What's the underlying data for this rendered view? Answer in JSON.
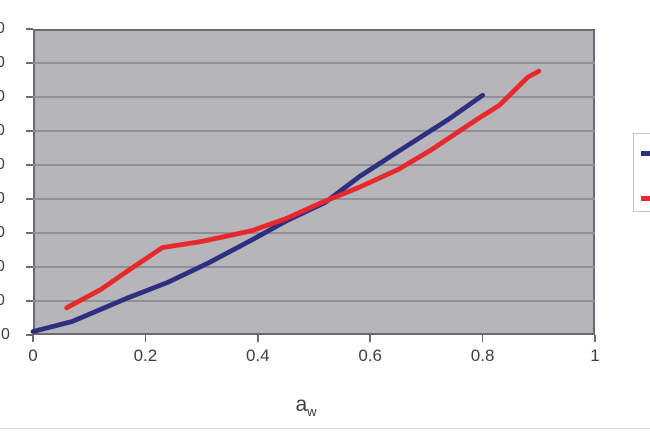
{
  "colors": {
    "series_blue": "#2f2f82",
    "series_red": "#e8282b",
    "plot_background": "#b5b5ba",
    "gridline": "#8f8f96",
    "axis_border": "#6a6a71",
    "label_text": "#3f3f41",
    "legend_border": "#c4c4c9",
    "chart_border": "#dadade"
  },
  "chart_data": {
    "type": "line",
    "title": "",
    "xlabel": "aw",
    "xlabel_base": "a",
    "xlabel_sub": "w",
    "ylabel": "",
    "xlim": [
      0,
      1
    ],
    "x_tick_labels": [
      "0",
      "0.2",
      "0.4",
      "0.6",
      "0.8",
      "1"
    ],
    "x_tick_values": [
      0,
      0.2,
      0.4,
      0.6,
      0.8,
      1
    ],
    "y_axis_note": "y tick labels clipped by left image edge; only trailing digit visible at each of 10 gridlines; bottom label is 0",
    "y_tick_labels_visible": [
      "0",
      "0",
      "0",
      "0",
      "0",
      "0",
      "0",
      "0",
      "0",
      "0"
    ],
    "ylim_gridline_units": [
      0,
      9
    ],
    "grid": "horizontal",
    "legend_position": "right, clipped at image edge, labels not visible",
    "series": [
      {
        "name": "series-blue",
        "color": "#2f2f82",
        "x": [
          0.0,
          0.07,
          0.12,
          0.17,
          0.24,
          0.31,
          0.39,
          0.45,
          0.52,
          0.58,
          0.65,
          0.74,
          0.8
        ],
        "y": [
          0.1,
          0.4,
          0.75,
          1.1,
          1.55,
          2.1,
          2.8,
          3.35,
          3.9,
          4.65,
          5.4,
          6.35,
          7.05
        ]
      },
      {
        "name": "series-red",
        "color": "#e8282b",
        "x": [
          0.06,
          0.12,
          0.17,
          0.23,
          0.3,
          0.39,
          0.45,
          0.51,
          0.58,
          0.65,
          0.71,
          0.79,
          0.83,
          0.88,
          0.9
        ],
        "y": [
          0.8,
          1.33,
          1.9,
          2.57,
          2.75,
          3.07,
          3.42,
          3.87,
          4.34,
          4.87,
          5.46,
          6.34,
          6.76,
          7.58,
          7.76
        ]
      }
    ]
  },
  "legend": {
    "markers": [
      {
        "name": "blue-series-marker",
        "color": "#2f2f82"
      },
      {
        "name": "red-series-marker",
        "color": "#e8282b"
      }
    ]
  }
}
